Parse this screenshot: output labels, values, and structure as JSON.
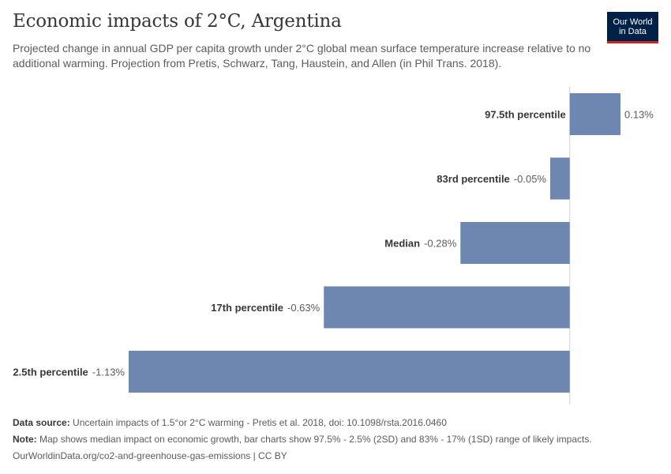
{
  "header": {
    "title": "Economic impacts of 2°C, Argentina",
    "subtitle": "Projected change in annual GDP per capita growth under 2°C global mean surface temperature increase relative to no additional warming. Projection from Pretis, Schwarz, Tang, Haustein, and Allen (in Phil Trans. 2018)."
  },
  "logo": {
    "line1": "Our World",
    "line2": "in Data"
  },
  "colors": {
    "bar": "#6d87b1",
    "axis": "#d0d0d0",
    "label": "#373737",
    "value": "#5b5b5b"
  },
  "chart_data": {
    "type": "bar",
    "orientation": "horizontal",
    "categories": [
      "97.5th percentile",
      "83rd percentile",
      "Median",
      "17th percentile",
      "2.5th percentile"
    ],
    "values": [
      0.13,
      -0.05,
      -0.28,
      -0.63,
      -1.13
    ],
    "value_labels": [
      "0.13%",
      "-0.05%",
      "-0.28%",
      "-0.63%",
      "-1.13%"
    ],
    "xlim": [
      -1.13,
      0.13
    ]
  },
  "footer": {
    "source_label": "Data source:",
    "source_text": "Uncertain impacts of 1.5°or 2°C warming - Pretis et al. 2018, doi: 10.1098/rsta.2016.0460",
    "note_label": "Note:",
    "note_text": "Map shows median impact on economic growth, bar charts show 97.5% - 2.5% (2SD) and 83% - 17% (1SD) range of likely impacts.",
    "url": "OurWorldinData.org/co2-and-greenhouse-gas-emissions | CC BY"
  }
}
